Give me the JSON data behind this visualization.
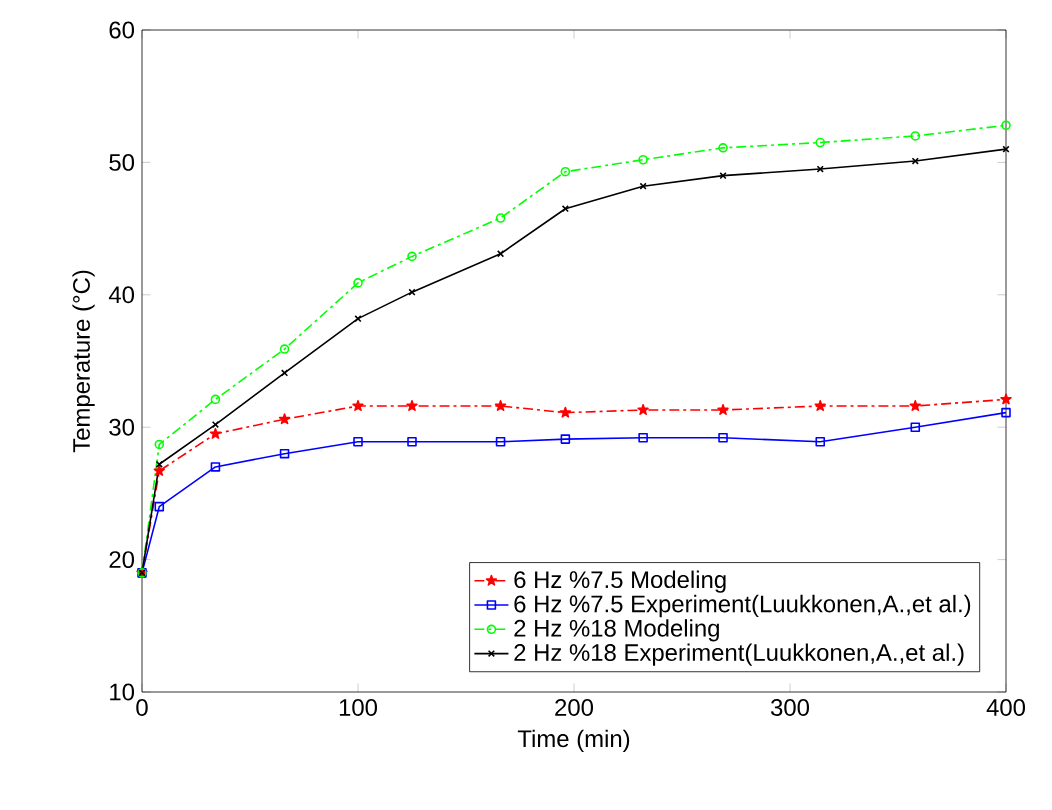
{
  "chart_data": {
    "type": "line",
    "xlabel": "Time  (min)",
    "ylabel": "Temperature (°C)",
    "xlim": [
      0,
      400
    ],
    "ylim": [
      10,
      60
    ],
    "xticks": [
      0,
      100,
      200,
      300,
      400
    ],
    "yticks": [
      10,
      20,
      30,
      40,
      50,
      60
    ],
    "x": [
      0,
      8,
      34,
      66,
      100,
      125,
      166,
      196,
      232,
      269,
      314,
      358,
      400
    ],
    "grid": false,
    "legend": "bottom right",
    "series": [
      {
        "name": "6 Hz %7.5 Modeling",
        "color": "#ff0000",
        "marker": "star",
        "line_style": "dashdot",
        "values": [
          19,
          26.7,
          29.5,
          30.6,
          31.6,
          31.6,
          31.6,
          31.1,
          31.3,
          31.3,
          31.6,
          31.6,
          32.1
        ]
      },
      {
        "name": "6 Hz %7.5 Experiment(Luukkonen,A.,et al.)",
        "color": "#0000ff",
        "marker": "square",
        "line_style": "solid",
        "values": [
          19,
          24,
          27.0,
          28.0,
          28.9,
          28.9,
          28.9,
          29.1,
          29.2,
          29.2,
          28.9,
          30.0,
          31.1
        ]
      },
      {
        "name": "2 Hz %18 Modeling",
        "color": "#00ff00",
        "marker": "circle",
        "line_style": "dashdot",
        "values": [
          19,
          28.7,
          32.1,
          35.9,
          40.9,
          42.9,
          45.8,
          49.3,
          50.2,
          51.1,
          51.5,
          52.0,
          52.8
        ]
      },
      {
        "name": "2 Hz %18 Experiment(Luukkonen,A.,et al.)",
        "color": "#000000",
        "marker": "cross",
        "line_style": "solid",
        "values": [
          19,
          27.2,
          30.2,
          34.1,
          38.2,
          40.2,
          43.1,
          46.5,
          48.2,
          49.0,
          49.5,
          50.1,
          51.0
        ]
      }
    ]
  }
}
